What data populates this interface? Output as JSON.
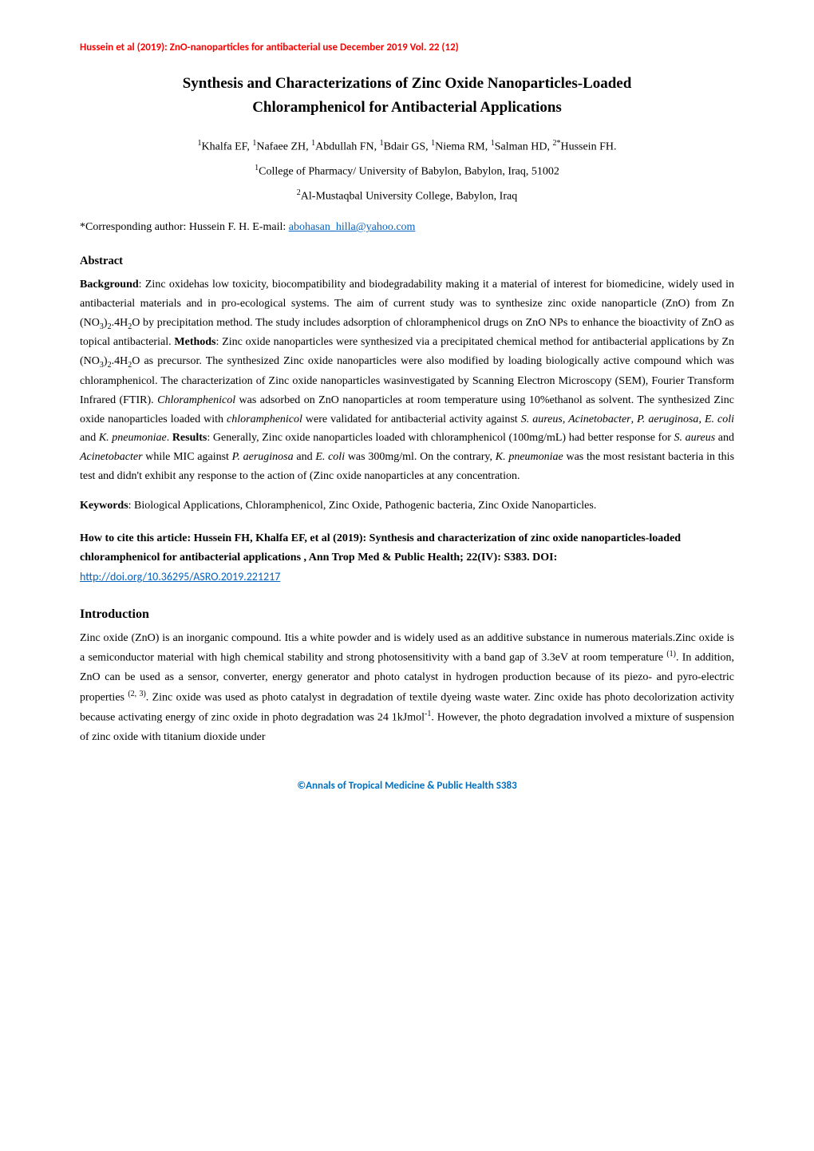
{
  "header": {
    "text": "Hussein et al (2019):  ZnO-nanoparticles for antibacterial use   December 2019  Vol. 22 (12)"
  },
  "title": {
    "line1": "Synthesis and Characterizations of Zinc Oxide Nanoparticles-Loaded",
    "line2": "Chloramphenicol for Antibacterial Applications"
  },
  "authors": {
    "list_html": "<span class='sup'>1</span>Khalfa EF, <span class='sup'>1</span>Nafaee ZH, <span class='sup'>1</span>Abdullah FN, <span class='sup'>1</span>Bdair GS, <span class='sup'>1</span>Niema RM, <span class='sup'>1</span>Salman HD, <span class='sup'>2*</span>Hussein FH."
  },
  "affiliations": {
    "a1_html": "<span class='sup'>1</span>College of Pharmacy/ University of Babylon, Babylon, Iraq, 51002",
    "a2_html": "<span class='sup'>2</span>Al-Mustaqbal University College, Babylon, Iraq"
  },
  "corresponding": {
    "prefix": "*Corresponding author: Hussein F. H. E-mail: ",
    "email": "abohasan_hilla@yahoo.com"
  },
  "abstract": {
    "heading": "Abstract",
    "bg_label": "Background",
    "bg_text_html": ": Zinc oxidehas low toxicity, biocompatibility and biodegradability making it a material of interest for biomedicine, widely used in antibacterial materials and in pro-ecological systems. The aim of current study was to synthesize zinc oxide nanoparticle (ZnO) from Zn (NO<span class='sub'>3</span>)<span class='sub'>2</span>.4H<span class='sub'>2</span>O by precipitation method.  The study includes adsorption of chloramphenicol drugs on ZnO NPs to enhance the bioactivity of ZnO as topical antibacterial. ",
    "methods_label": "Methods",
    "methods_text_html": ": Zinc oxide nanoparticles were synthesized via a precipitated chemical method for antibacterial applications by Zn (NO<span class='sub'>3</span>)<span class='sub'>2</span>.4H<span class='sub'>2</span>O as precursor. The synthesized Zinc oxide nanoparticles were also modified by loading biologically active compound which was chloramphenicol. The characterization of Zinc oxide nanoparticles wasinvestigated by Scanning Electron Microscopy (SEM), Fourier Transform Infrared (FTIR). <span class='italic'>Chloramphenicol</span> was adsorbed on ZnO nanoparticles at room temperature using 10%ethanol as solvent. The synthesized Zinc oxide nanoparticles loaded with <span class='italic'>chloramphenicol</span> were validated for antibacterial activity against <span class='italic'>S. aureus, Acinetobacter</span>, <span class='italic'>P. aeruginosa</span>, <span class='italic'>E. coli</span> and <span class='italic'>K. pneumoniae</span>. ",
    "results_label": "Results",
    "results_text_html": ": Generally, Zinc oxide nanoparticles loaded with chloramphenicol (100mg/mL) had better response for <span class='italic'>S. aureus</span> and <span class='italic'>Acinetobacter</span> while MIC against <span class='italic'>P. aeruginosa</span> and <span class='italic'>E. coli</span> was 300mg/ml.  On the contrary, <span class='italic'>K. pneumoniae</span> was the most resistant bacteria in this test and didn't exhibit any response to the action of (Zinc oxide nanoparticles at any concentration."
  },
  "keywords": {
    "label": "Keywords",
    "text": ": Biological Applications, Chloramphenicol, Zinc Oxide, Pathogenic bacteria, Zinc Oxide Nanoparticles."
  },
  "cite": {
    "text": "How to cite this article: Hussein FH, Khalfa EF, et al  (2019):  Synthesis and characterization of zinc oxide nanoparticles-loaded chloramphenicol for antibacterial applications , Ann Trop Med & Public Health; 22(IV): S383. DOI: ",
    "doi": "http://doi.org/10.36295/ASRO.2019.221217"
  },
  "intro": {
    "heading": "Introduction",
    "body_html": "Zinc oxide (ZnO) is an inorganic compound. Itis a white powder and is widely used as an additive substance in numerous materials.Zinc oxide is a semiconductor material with high chemical stability and strong photosensitivity with a band gap of 3.3eV at room temperature <span class='sup'>(1)</span>. In addition, ZnO can be used as a sensor, converter, energy generator and photo catalyst in hydrogen production because of its piezo- and pyro-electric properties <span class='sup'>(2, 3)</span>. Zinc oxide was used as photo catalyst in degradation of textile dyeing waste water. Zinc oxide has photo decolorization activity because activating energy of zinc oxide in photo degradation was 24  1kJmol<span class='sup'>-1</span>. However, the photo degradation involved a mixture of suspension of zinc oxide with titanium dioxide under"
  },
  "footer": {
    "text": "©Annals of Tropical Medicine & Public Health S383"
  },
  "colors": {
    "header_color": "#ff0000",
    "link_color": "#0563c1",
    "footer_color": "#0070c0",
    "text_color": "#000000",
    "background": "#ffffff"
  },
  "typography": {
    "body_family": "Times New Roman",
    "body_size_pt": 11,
    "title_size_pt": 15,
    "header_family": "Calibri"
  }
}
